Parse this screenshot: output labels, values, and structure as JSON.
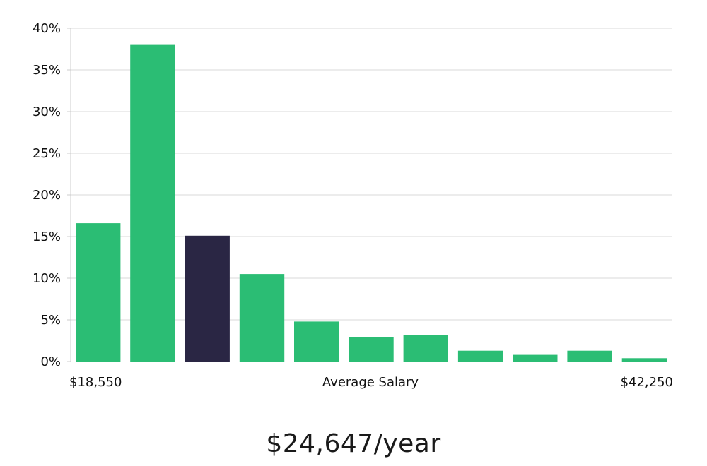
{
  "chart_data": {
    "type": "bar",
    "title": "",
    "xlabel": "Average Salary",
    "ylabel": "",
    "ylim": [
      0,
      40
    ],
    "yticks": [
      0,
      5,
      10,
      15,
      20,
      25,
      30,
      35,
      40
    ],
    "ytick_labels": [
      "0%",
      "5%",
      "10%",
      "15%",
      "20%",
      "25%",
      "30%",
      "35%",
      "40%"
    ],
    "x_range_labels": {
      "min": "$18,550",
      "max": "$42,250"
    },
    "values": [
      16.6,
      38.0,
      15.1,
      10.5,
      4.8,
      2.9,
      3.2,
      1.3,
      0.8,
      1.3,
      0.4
    ],
    "highlight_index": 2,
    "colors": {
      "bar": "#2bbd74",
      "highlight": "#2a2644",
      "grid": "#e6e6e6",
      "axis": "#cccccc"
    },
    "grid": true,
    "legend": "none"
  },
  "summary": {
    "salary_text": "$24,647/year"
  }
}
